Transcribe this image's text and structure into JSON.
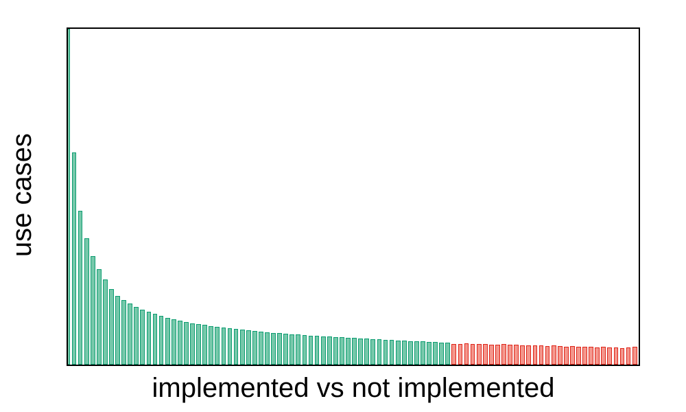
{
  "chart_data": {
    "type": "bar",
    "title": "",
    "xlabel": "implemented vs not implemented",
    "ylabel": "use cases",
    "x_tick_labels": [],
    "y_tick_labels": [],
    "grid": false,
    "legend_position": "none",
    "frame": true,
    "ylim": [
      0,
      489
    ],
    "background_color": "#ffffff",
    "frame_color": "#000000",
    "series": [
      {
        "name": "implemented",
        "fill_color": "#76c8aa",
        "border_color": "#0b9c70",
        "values": [
          489,
          309,
          224,
          184,
          158,
          139,
          124,
          110,
          100,
          94,
          89,
          84,
          80,
          77,
          74,
          71,
          68,
          66,
          64,
          62,
          60,
          59,
          58,
          56,
          55,
          54,
          53,
          52,
          51,
          50,
          49,
          48,
          47,
          46,
          46,
          45,
          44,
          44,
          43,
          42,
          42,
          41,
          41,
          40,
          40,
          39,
          39,
          38,
          38,
          37,
          37,
          36,
          36,
          35,
          35,
          34,
          34,
          34,
          33,
          33,
          32,
          32
        ]
      },
      {
        "name": "not implemented",
        "fill_color": "#f4968c",
        "border_color": "#de2317",
        "values": [
          30,
          30,
          31,
          30,
          30,
          30,
          29,
          29,
          30,
          29,
          29,
          28,
          28,
          28,
          28,
          27,
          28,
          27,
          26,
          27,
          26,
          26,
          26,
          25,
          26,
          25,
          25,
          24,
          25,
          26
        ]
      }
    ]
  }
}
